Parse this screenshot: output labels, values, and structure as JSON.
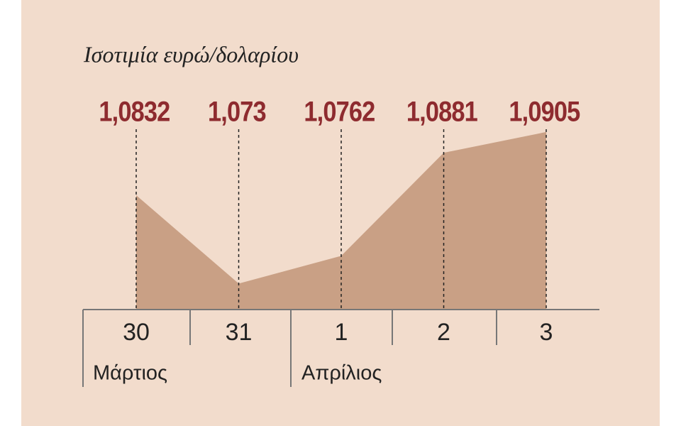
{
  "chart_data": {
    "type": "area",
    "title": "Ισοτιμία ευρώ/δολαρίου",
    "categories": [
      "30",
      "31",
      "1",
      "2",
      "3"
    ],
    "values": [
      1.0832,
      1.073,
      1.0762,
      1.0881,
      1.0905
    ],
    "value_labels": [
      "1,0832",
      "1,073",
      "1,0762",
      "1,0881",
      "1,0905"
    ],
    "annotations": [
      "Μάρτιος",
      "Απρίλιος"
    ],
    "color": "#c9a085",
    "label_color": "#8e2b2f",
    "ylim": [
      1.07,
      1.095
    ]
  }
}
